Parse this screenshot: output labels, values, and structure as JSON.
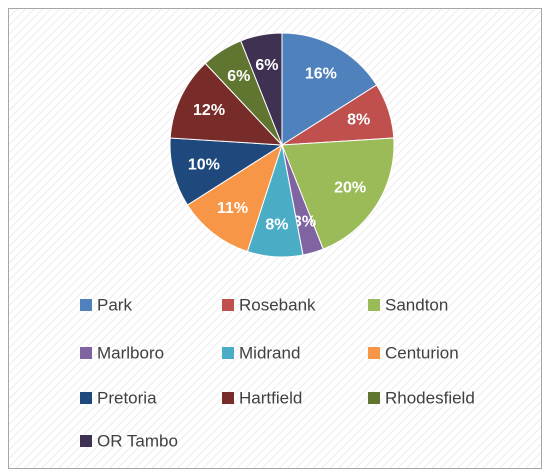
{
  "chart_data": {
    "type": "pie",
    "categories": [
      "Park",
      "Rosebank",
      "Sandton",
      "Marlboro",
      "Midrand",
      "Centurion",
      "Pretoria",
      "Hartfield",
      "Rhodesfield",
      "OR Tambo"
    ],
    "values": [
      16,
      8,
      20,
      3,
      8,
      11,
      10,
      12,
      6,
      6
    ],
    "value_labels": [
      "16%",
      "8%",
      "20%",
      "3%",
      "8%",
      "11%",
      "10%",
      "12%",
      "6%",
      "6%"
    ],
    "colors": [
      "#4f81bd",
      "#c0504d",
      "#9bbb59",
      "#8064a2",
      "#4bacc6",
      "#f79646",
      "#1f497d",
      "#772c2a",
      "#5f7530",
      "#3f3151"
    ],
    "legend": "bottom"
  }
}
